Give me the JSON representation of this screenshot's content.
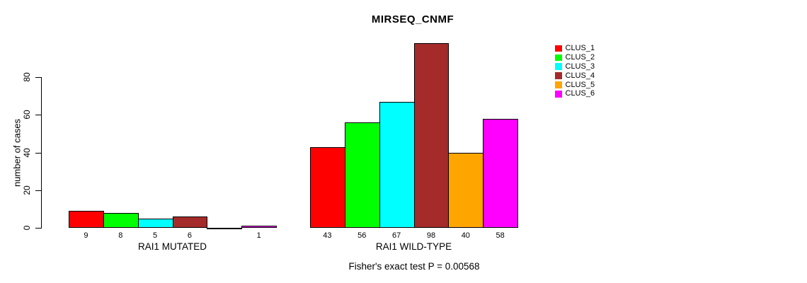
{
  "title": "MIRSEQ_CNMF",
  "chart_data": {
    "type": "bar",
    "title": "MIRSEQ_CNMF",
    "xlabel": "",
    "ylabel": "number of cases",
    "ylim": [
      0,
      80
    ],
    "yticks": [
      0,
      20,
      40,
      60,
      80
    ],
    "grid": false,
    "legend_position": "right-outside-top",
    "series_names": [
      "CLUS_1",
      "CLUS_2",
      "CLUS_3",
      "CLUS_4",
      "CLUS_5",
      "CLUS_6"
    ],
    "series_colors": [
      "#ff0000",
      "#00ff00",
      "#00ffff",
      "#a52a2a",
      "#ffa500",
      "#ff00ff"
    ],
    "groups": [
      {
        "label": "RAI1 MUTATED",
        "values": [
          9,
          8,
          5,
          6,
          0,
          1
        ],
        "bar_labels": [
          "9",
          "8",
          "5",
          "6",
          "",
          "1"
        ]
      },
      {
        "label": "RAI1 WILD-TYPE",
        "values": [
          43,
          56,
          67,
          98,
          40,
          58
        ],
        "bar_labels": [
          "43",
          "56",
          "67",
          "98",
          "40",
          "58"
        ]
      }
    ],
    "annotation": "Fisher's exact test P = 0.00568"
  },
  "legend": {
    "items": [
      {
        "label": "CLUS_1",
        "color": "#ff0000"
      },
      {
        "label": "CLUS_2",
        "color": "#00ff00"
      },
      {
        "label": "CLUS_3",
        "color": "#00ffff"
      },
      {
        "label": "CLUS_4",
        "color": "#a52a2a"
      },
      {
        "label": "CLUS_5",
        "color": "#ffa500"
      },
      {
        "label": "CLUS_6",
        "color": "#ff00ff"
      }
    ]
  }
}
